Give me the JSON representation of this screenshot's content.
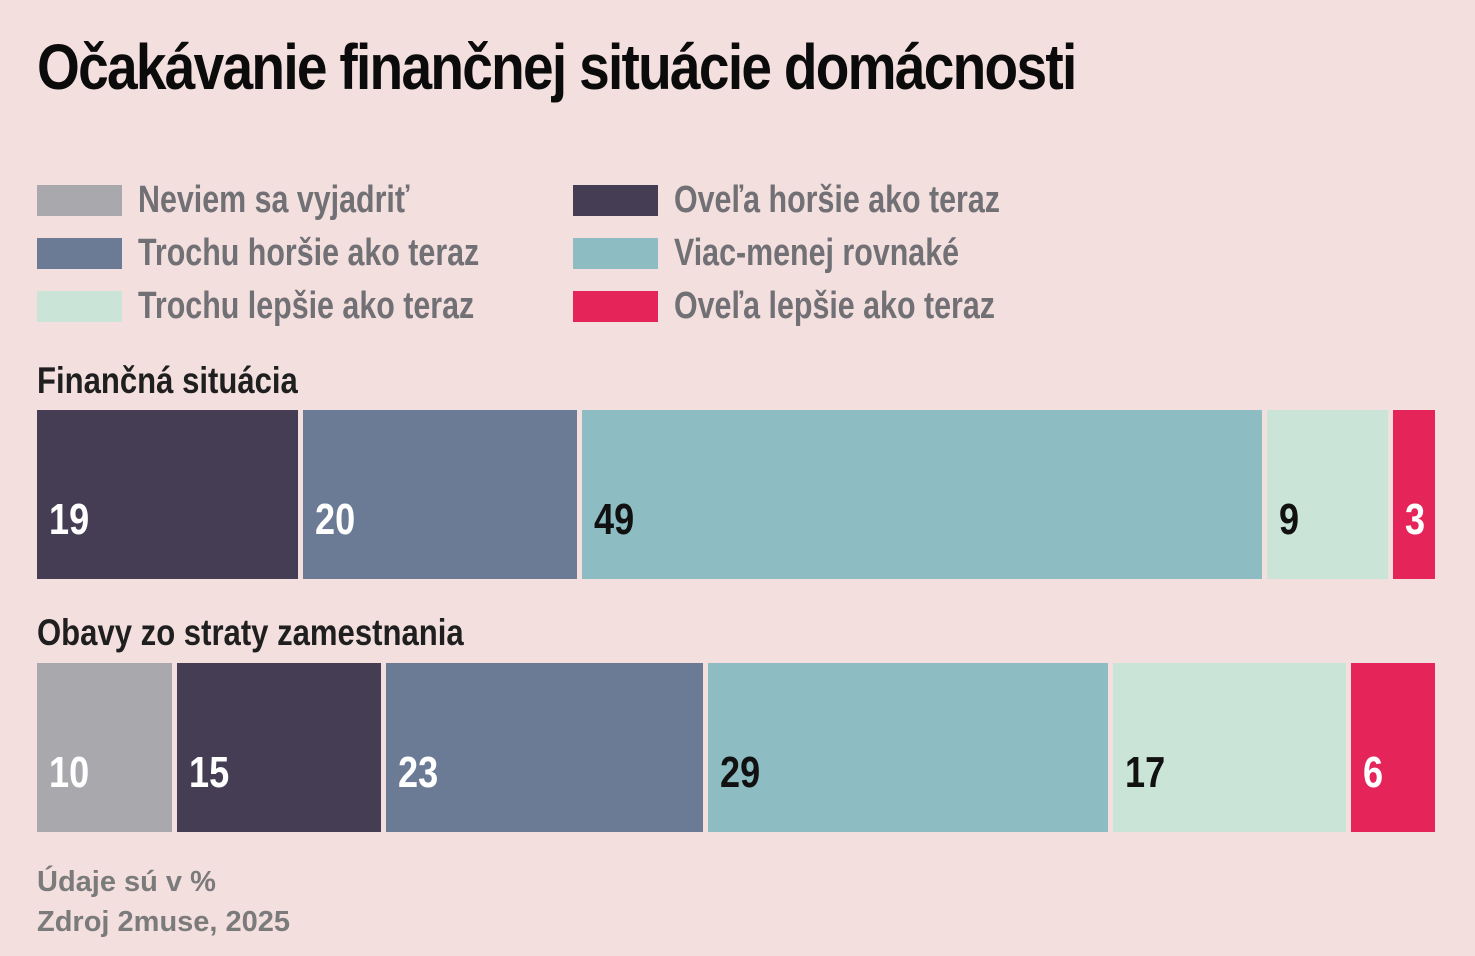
{
  "chart_data": {
    "type": "bar",
    "orientation": "horizontal-stacked",
    "title": "Očakávanie finančnej situácie domácnosti",
    "legend": [
      {
        "key": "neviem",
        "label": "Neviem sa vyjadriť",
        "color": "#a9a9ad"
      },
      {
        "key": "ovela_horsie",
        "label": "Oveľa horšie ako teraz",
        "color": "#453d54"
      },
      {
        "key": "trochu_horsie",
        "label": "Trochu horšie ako teraz",
        "color": "#6b7b95"
      },
      {
        "key": "rovnake",
        "label": "Viac-menej rovnaké",
        "color": "#8dbcc2"
      },
      {
        "key": "trochu_lepsie",
        "label": "Trochu lepšie ako teraz",
        "color": "#cae4d8"
      },
      {
        "key": "ovela_lepsie",
        "label": "Oveľa lepšie ako teraz",
        "color": "#e5245a"
      }
    ],
    "rows": [
      {
        "name": "Finančná situácia",
        "segments": [
          {
            "key": "ovela_horsie",
            "value": 19,
            "text_color": "#ffffff"
          },
          {
            "key": "trochu_horsie",
            "value": 20,
            "text_color": "#ffffff"
          },
          {
            "key": "rovnake",
            "value": 49,
            "text_color": "#111111"
          },
          {
            "key": "trochu_lepsie",
            "value": 9,
            "text_color": "#111111"
          },
          {
            "key": "ovela_lepsie",
            "value": 3,
            "text_color": "#ffffff"
          }
        ]
      },
      {
        "name": "Obavy zo straty zamestnania",
        "segments": [
          {
            "key": "neviem",
            "value": 10,
            "text_color": "#ffffff"
          },
          {
            "key": "ovela_horsie",
            "value": 15,
            "text_color": "#ffffff"
          },
          {
            "key": "trochu_horsie",
            "value": 23,
            "text_color": "#ffffff"
          },
          {
            "key": "rovnake",
            "value": 29,
            "text_color": "#111111"
          },
          {
            "key": "trochu_lepsie",
            "value": 17,
            "text_color": "#111111"
          },
          {
            "key": "ovela_lepsie",
            "value": 6,
            "text_color": "#ffffff"
          }
        ]
      }
    ],
    "unit": "%",
    "xlim": [
      0,
      100
    ]
  },
  "footer": {
    "note": "Údaje sú v %",
    "source": "Zdroj 2muse, 2025"
  }
}
